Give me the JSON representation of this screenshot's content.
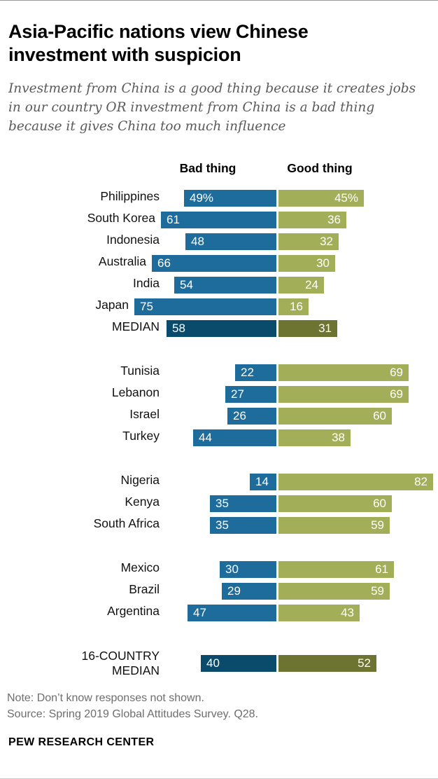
{
  "header": {
    "title": "Asia-Pacific nations view Chinese investment with suspicion",
    "subtitle": "Investment from China is a good thing because it creates jobs in our country OR investment from China is a bad thing because it gives China too much influence"
  },
  "columns": {
    "bad_label": "Bad thing",
    "good_label": "Good thing"
  },
  "chart_data": {
    "type": "bar",
    "variant": "diverging-horizontal",
    "unit": "%",
    "xlim": [
      0,
      100
    ],
    "series": [
      "Bad thing",
      "Good thing"
    ],
    "colors": {
      "bad": "#1e6c9b",
      "good": "#a3ae58",
      "bad_median": "#0a4a6b",
      "good_median": "#6d7330"
    },
    "groups": [
      {
        "name": "asia-pacific",
        "rows": [
          {
            "label": "Philippines",
            "bad": 49,
            "good": 45,
            "bad_display": "49%",
            "good_display": "45%"
          },
          {
            "label": "South Korea",
            "bad": 61,
            "good": 36
          },
          {
            "label": "Indonesia",
            "bad": 48,
            "good": 32
          },
          {
            "label": "Australia",
            "bad": 66,
            "good": 30
          },
          {
            "label": "India",
            "bad": 54,
            "good": 24
          },
          {
            "label": "Japan",
            "bad": 75,
            "good": 16
          },
          {
            "label": "MEDIAN",
            "bad": 58,
            "good": 31,
            "median": true
          }
        ]
      },
      {
        "name": "middle-east",
        "rows": [
          {
            "label": "Tunisia",
            "bad": 22,
            "good": 69
          },
          {
            "label": "Lebanon",
            "bad": 27,
            "good": 69
          },
          {
            "label": "Israel",
            "bad": 26,
            "good": 60
          },
          {
            "label": "Turkey",
            "bad": 44,
            "good": 38
          }
        ]
      },
      {
        "name": "africa",
        "rows": [
          {
            "label": "Nigeria",
            "bad": 14,
            "good": 82
          },
          {
            "label": "Kenya",
            "bad": 35,
            "good": 60
          },
          {
            "label": "South Africa",
            "bad": 35,
            "good": 59
          }
        ]
      },
      {
        "name": "latin-america",
        "rows": [
          {
            "label": "Mexico",
            "bad": 30,
            "good": 61
          },
          {
            "label": "Brazil",
            "bad": 29,
            "good": 59
          },
          {
            "label": "Argentina",
            "bad": 47,
            "good": 43
          }
        ]
      },
      {
        "name": "overall",
        "rows": [
          {
            "label": [
              "16-COUNTRY",
              "MEDIAN"
            ],
            "bad": 40,
            "good": 52,
            "median": true,
            "tall": true
          }
        ]
      }
    ]
  },
  "footer": {
    "note": "Note: Don’t know responses not shown.",
    "source": "Source: Spring 2019 Global Attitudes Survey. Q28.",
    "brand": "PEW RESEARCH CENTER"
  }
}
